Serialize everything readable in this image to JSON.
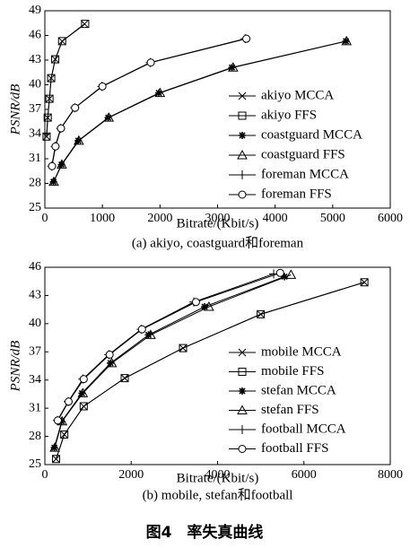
{
  "figure_caption": "图4　率失真曲线",
  "chart_data": [
    {
      "type": "line",
      "xlabel": "Bitrate/(Kbit/s)",
      "ylabel": "PSNR/dB",
      "caption": "(a) akiyo, coastguard和foreman",
      "xlim": [
        0,
        6000
      ],
      "xticks": [
        0,
        1000,
        2000,
        3000,
        4000,
        5000,
        6000
      ],
      "ylim": [
        25,
        49
      ],
      "yticks": [
        25,
        28,
        31,
        34,
        37,
        40,
        43,
        46,
        49
      ],
      "series": [
        {
          "name": "akiyo MCCA",
          "marker": "x",
          "color": "#000000",
          "x": [
            30,
            50,
            80,
            110,
            180,
            300,
            690
          ],
          "values": [
            33.7,
            36.0,
            38.3,
            40.8,
            43.1,
            45.3,
            47.4
          ]
        },
        {
          "name": "akiyo FFS",
          "marker": "square",
          "color": "#000000",
          "x": [
            30,
            50,
            80,
            110,
            180,
            300,
            700
          ],
          "values": [
            33.7,
            36.0,
            38.3,
            40.8,
            43.1,
            45.3,
            47.4
          ]
        },
        {
          "name": "coastguard MCCA",
          "marker": "star",
          "color": "#000000",
          "x": [
            150,
            290,
            580,
            1100,
            1980,
            3250,
            5230
          ],
          "values": [
            28.2,
            30.3,
            33.2,
            36.0,
            39.0,
            42.1,
            45.3
          ]
        },
        {
          "name": "coastguard FFS",
          "marker": "triangle",
          "color": "#000000",
          "x": [
            155,
            295,
            590,
            1110,
            2000,
            3270,
            5240
          ],
          "values": [
            28.2,
            30.3,
            33.2,
            36.0,
            39.0,
            42.1,
            45.3
          ]
        },
        {
          "name": "foreman MCCA",
          "marker": "plus",
          "color": "#000000",
          "x": [
            120,
            180,
            275,
            520,
            990,
            1830,
            3480
          ],
          "values": [
            30.1,
            32.5,
            34.7,
            37.2,
            39.8,
            42.7,
            45.6
          ]
        },
        {
          "name": "foreman FFS",
          "marker": "circle",
          "color": "#000000",
          "x": [
            125,
            185,
            280,
            525,
            1000,
            1840,
            3500
          ],
          "values": [
            30.1,
            32.5,
            34.7,
            37.2,
            39.8,
            42.7,
            45.6
          ]
        }
      ]
    },
    {
      "type": "line",
      "xlabel": "Bitrate/(Kbit/s)",
      "ylabel": "PSNR/dB",
      "caption": "(b) mobile, stefan和football",
      "xlim": [
        0,
        8000
      ],
      "xticks": [
        0,
        2000,
        4000,
        6000,
        8000
      ],
      "ylim": [
        25,
        46
      ],
      "yticks": [
        25,
        28,
        31,
        34,
        37,
        40,
        43,
        46
      ],
      "series": [
        {
          "name": "mobile MCCA",
          "marker": "x",
          "color": "#000000",
          "x": [
            260,
            450,
            900,
            1850,
            3200,
            5000,
            7400
          ],
          "values": [
            25.6,
            28.2,
            31.2,
            34.2,
            37.4,
            41.0,
            44.4
          ]
        },
        {
          "name": "mobile FFS",
          "marker": "square",
          "color": "#000000",
          "x": [
            260,
            450,
            900,
            1850,
            3200,
            5000,
            7400
          ],
          "values": [
            25.6,
            28.2,
            31.2,
            34.2,
            37.4,
            41.0,
            44.4
          ]
        },
        {
          "name": "stefan MCCA",
          "marker": "star",
          "color": "#000000",
          "x": [
            220,
            390,
            860,
            1520,
            2400,
            3700,
            5550
          ],
          "values": [
            26.8,
            29.6,
            32.6,
            35.8,
            38.8,
            41.8,
            45.0
          ]
        },
        {
          "name": "stefan FFS",
          "marker": "triangle",
          "color": "#000000",
          "x": [
            230,
            400,
            880,
            1550,
            2450,
            3800,
            5700
          ],
          "values": [
            26.8,
            29.6,
            32.6,
            35.8,
            38.8,
            41.8,
            45.2
          ]
        },
        {
          "name": "football MCCA",
          "marker": "plus",
          "color": "#000000",
          "x": [
            290,
            540,
            880,
            1480,
            2230,
            3450,
            5300
          ],
          "values": [
            29.7,
            31.7,
            34.1,
            36.7,
            39.4,
            42.3,
            45.3
          ]
        },
        {
          "name": "football FFS",
          "marker": "circle",
          "color": "#000000",
          "x": [
            300,
            550,
            900,
            1500,
            2250,
            3500,
            5450
          ],
          "values": [
            29.7,
            31.7,
            34.1,
            36.7,
            39.4,
            42.3,
            45.4
          ]
        }
      ]
    }
  ]
}
